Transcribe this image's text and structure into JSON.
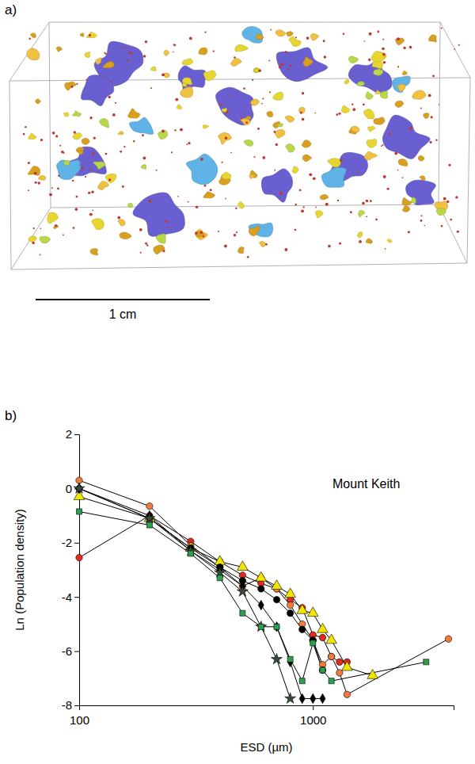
{
  "panel_a": {
    "label": "a)",
    "scale_bar_label": "1 cm"
  },
  "chart_data": {
    "type": "line",
    "label": "b)",
    "annotations": [
      "Mount Keith"
    ],
    "xlabel": "ESD (µm)",
    "ylabel": "Ln (Population density)",
    "log": "x",
    "xlim": [
      100,
      4000
    ],
    "xticks": [
      100,
      1000
    ],
    "ylim": [
      -8,
      2
    ],
    "yticks": [
      -8,
      -6,
      -4,
      -2,
      0,
      2
    ],
    "series": [
      {
        "color": "#e32b1c",
        "marker": "circle",
        "x": [
          100,
          200,
          300,
          400,
          500,
          600,
          700,
          800,
          900,
          1000,
          1100,
          1200,
          1300,
          1400
        ],
        "values": [
          -2.55,
          -1.0,
          -1.95,
          -2.7,
          -3.2,
          -3.5,
          -3.7,
          -4.1,
          -4.4,
          -5.4,
          -5.5,
          -6.2,
          -6.4,
          -6.4
        ]
      },
      {
        "color": "#f07c3a",
        "marker": "circle",
        "x": [
          100,
          200,
          300,
          400,
          500,
          600,
          700,
          800,
          900,
          1000,
          1100,
          1200,
          1300,
          1400,
          3800
        ],
        "values": [
          0.3,
          -0.65,
          -2.1,
          -2.9,
          -3.6,
          -3.3,
          -3.7,
          -4.3,
          -5.0,
          -5.6,
          -6.5,
          -6.2,
          -6.8,
          -7.6,
          -5.55
        ]
      },
      {
        "color": "#f2e600",
        "marker": "triangle",
        "x": [
          100,
          200,
          300,
          400,
          500,
          600,
          700,
          800,
          900,
          1000,
          1100,
          1200,
          1400,
          1800
        ],
        "values": [
          -0.3,
          -1.1,
          -2.2,
          -2.7,
          -2.9,
          -3.3,
          -3.6,
          -3.9,
          -4.5,
          -4.6,
          -5.2,
          -5.6,
          -6.6,
          -6.9
        ]
      },
      {
        "color": "#000000",
        "marker": "diamond",
        "x": [
          100,
          200,
          300,
          400,
          500,
          600,
          700,
          800,
          900,
          1000,
          1100
        ],
        "values": [
          0,
          -1.0,
          -2.3,
          -3.0,
          -3.6,
          -4.3,
          -5.1,
          -6.4,
          -7.75,
          -7.75,
          -7.75
        ]
      },
      {
        "color": "#000000",
        "marker": "circle",
        "x": [
          100,
          200,
          300,
          400,
          500,
          600,
          700,
          800,
          900,
          1000,
          1100
        ],
        "values": [
          0,
          -1.1,
          -2.2,
          -2.9,
          -3.4,
          -3.7,
          -4.1,
          -4.6,
          -5.2,
          -5.6,
          -6.7
        ]
      },
      {
        "color": "#3a4a3a",
        "marker": "star",
        "x": [
          100,
          200,
          300,
          400,
          500,
          600,
          700,
          800
        ],
        "values": [
          0,
          -1.1,
          -2.3,
          -3.1,
          -3.8,
          -5.1,
          -6.3,
          -7.75
        ]
      },
      {
        "color": "#2e9e4f",
        "marker": "square",
        "x": [
          100,
          200,
          300,
          400,
          500,
          600,
          700,
          800,
          900,
          1000,
          1100,
          1200,
          3050
        ],
        "values": [
          -0.85,
          -1.35,
          -2.4,
          -3.3,
          -4.6,
          -5.1,
          -5.1,
          -6.3,
          -7.1,
          -5.7,
          -6.7,
          -7.1,
          -6.4
        ]
      }
    ]
  }
}
